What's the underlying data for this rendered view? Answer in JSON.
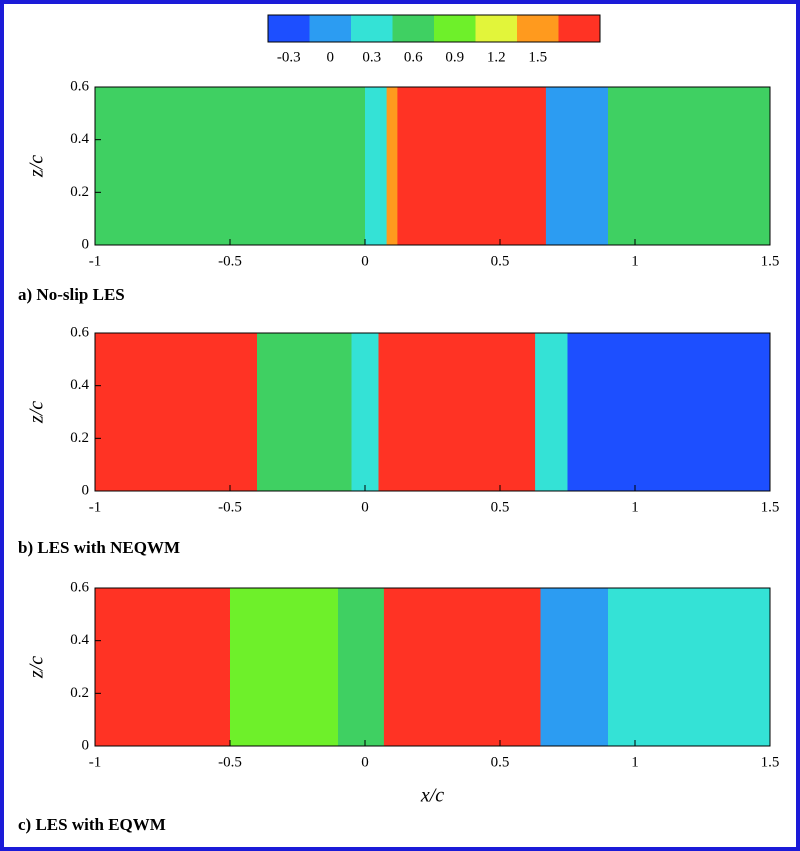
{
  "chart_data": {
    "type": "contour",
    "xlabel": "x/c",
    "ylabel": "z/c",
    "xlim": [
      -1,
      1.5
    ],
    "xticks": [
      -1,
      -0.5,
      0,
      0.5,
      1,
      1.5
    ],
    "ylim": [
      0,
      0.6
    ],
    "yticks": [
      0,
      0.2,
      0.4,
      0.6
    ],
    "colorbar": {
      "lim": [
        -0.45,
        1.95
      ],
      "ticks": [
        -0.3,
        0,
        0.3,
        0.6,
        0.9,
        1.2,
        1.5
      ],
      "colors": [
        "#1d4fff",
        "#2c9cf2",
        "#34e2d6",
        "#3fd062",
        "#6ef02a",
        "#e2f53a",
        "#ff9a1e",
        "#ff3324"
      ]
    },
    "panels": [
      {
        "caption": "a) No-slip LES",
        "bins": [
          -1,
          0,
          0.08,
          0.12,
          0.67,
          0.9,
          1.5
        ],
        "values": [
          0.6,
          0.3,
          1.5,
          1.8,
          0,
          0.6
        ]
      },
      {
        "caption": "b) LES with NEQWM",
        "bins": [
          -1,
          -0.4,
          -0.05,
          0.05,
          0.63,
          0.75,
          1.5
        ],
        "values": [
          1.8,
          0.6,
          0.3,
          1.8,
          0.3,
          -0.3
        ]
      },
      {
        "caption": "c) LES with EQWM",
        "bins": [
          -1,
          -0.5,
          -0.1,
          0.07,
          0.65,
          0.9,
          1.5
        ],
        "values": [
          1.8,
          0.9,
          0.6,
          1.8,
          0,
          0.3
        ]
      }
    ]
  }
}
